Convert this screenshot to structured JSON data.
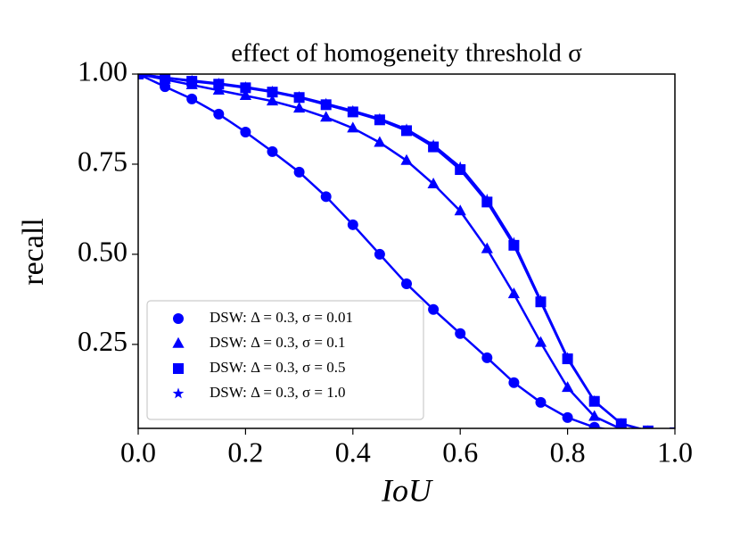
{
  "chart_data": {
    "type": "line",
    "title": "effect of homogeneity threshold σ",
    "x_label": "IoU",
    "y_label": "recall",
    "x": [
      0.0,
      0.05,
      0.1,
      0.15,
      0.2,
      0.25,
      0.3,
      0.35,
      0.4,
      0.45,
      0.5,
      0.55,
      0.6,
      0.65,
      0.7,
      0.75,
      0.8,
      0.85,
      0.9,
      0.95,
      1.0
    ],
    "series": [
      {
        "name": "DSW: Δ = 0.3, σ = 0.01",
        "color": "#0000ff",
        "marker": "circle",
        "values": [
          1.0,
          0.965,
          0.931,
          0.889,
          0.839,
          0.785,
          0.728,
          0.66,
          0.582,
          0.5,
          0.418,
          0.347,
          0.28,
          0.213,
          0.144,
          0.089,
          0.047,
          0.02,
          0.008,
          0.003,
          0.0
        ]
      },
      {
        "name": "DSW: Δ = 0.3, σ = 0.1",
        "color": "#0000ff",
        "marker": "triangle",
        "values": [
          1.0,
          0.985,
          0.97,
          0.955,
          0.94,
          0.925,
          0.905,
          0.88,
          0.85,
          0.81,
          0.76,
          0.695,
          0.62,
          0.515,
          0.39,
          0.255,
          0.13,
          0.05,
          0.015,
          0.005,
          0.0
        ]
      },
      {
        "name": "DSW: Δ = 0.3, σ = 0.5",
        "color": "#0000ff",
        "marker": "square",
        "values": [
          1.0,
          0.99,
          0.98,
          0.972,
          0.962,
          0.95,
          0.935,
          0.915,
          0.895,
          0.873,
          0.843,
          0.798,
          0.735,
          0.645,
          0.525,
          0.368,
          0.21,
          0.092,
          0.03,
          0.01,
          0.005
        ]
      },
      {
        "name": "DSW: Δ = 0.3, σ = 1.0",
        "color": "#0000ff",
        "marker": "star",
        "values": [
          1.0,
          0.99,
          0.982,
          0.974,
          0.964,
          0.952,
          0.937,
          0.918,
          0.898,
          0.876,
          0.847,
          0.803,
          0.742,
          0.652,
          0.532,
          0.372,
          0.213,
          0.093,
          0.03,
          0.01,
          0.005
        ]
      }
    ],
    "xlim": [
      0.0,
      1.0
    ],
    "xticks": [
      {
        "value": 0.0,
        "label": "0.0"
      },
      0.2,
      0.4,
      0.6,
      0.8,
      {
        "value": 1.0,
        "label": "1.0"
      }
    ],
    "ylim": [
      0.017,
      1.0
    ],
    "yticks": [
      0.25,
      {
        "value": 0.5,
        "label": "0.50"
      },
      0.75,
      {
        "value": 1.0,
        "label": "1.00"
      }
    ],
    "grid": false,
    "legend": "lower left"
  }
}
